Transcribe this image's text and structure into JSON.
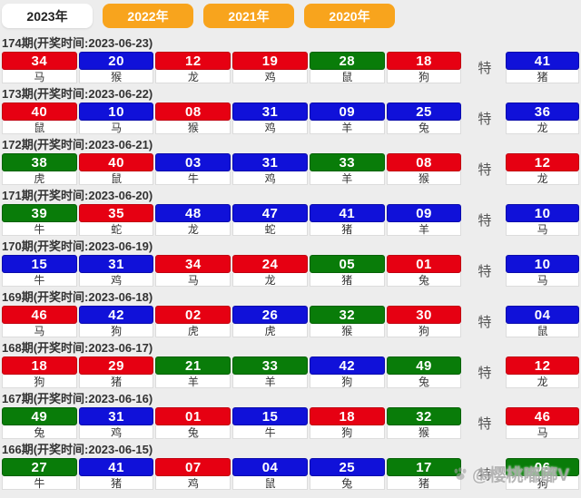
{
  "tabs": [
    {
      "label": "2023年",
      "active": true
    },
    {
      "label": "2022年",
      "active": false
    },
    {
      "label": "2021年",
      "active": false
    },
    {
      "label": "2020年",
      "active": false
    }
  ],
  "special_label": "特",
  "draws": [
    {
      "title": "174期(开奖时间:2023-06-23)",
      "numbers": [
        {
          "value": "34",
          "color": "red",
          "zodiac": "马"
        },
        {
          "value": "20",
          "color": "blue",
          "zodiac": "猴"
        },
        {
          "value": "12",
          "color": "red",
          "zodiac": "龙"
        },
        {
          "value": "19",
          "color": "red",
          "zodiac": "鸡"
        },
        {
          "value": "28",
          "color": "green",
          "zodiac": "鼠"
        },
        {
          "value": "18",
          "color": "red",
          "zodiac": "狗"
        }
      ],
      "special": {
        "value": "41",
        "color": "blue",
        "zodiac": "猪"
      }
    },
    {
      "title": "173期(开奖时间:2023-06-22)",
      "numbers": [
        {
          "value": "40",
          "color": "red",
          "zodiac": "鼠"
        },
        {
          "value": "10",
          "color": "blue",
          "zodiac": "马"
        },
        {
          "value": "08",
          "color": "red",
          "zodiac": "猴"
        },
        {
          "value": "31",
          "color": "blue",
          "zodiac": "鸡"
        },
        {
          "value": "09",
          "color": "blue",
          "zodiac": "羊"
        },
        {
          "value": "25",
          "color": "blue",
          "zodiac": "兔"
        }
      ],
      "special": {
        "value": "36",
        "color": "blue",
        "zodiac": "龙"
      }
    },
    {
      "title": "172期(开奖时间:2023-06-21)",
      "numbers": [
        {
          "value": "38",
          "color": "green",
          "zodiac": "虎"
        },
        {
          "value": "40",
          "color": "red",
          "zodiac": "鼠"
        },
        {
          "value": "03",
          "color": "blue",
          "zodiac": "牛"
        },
        {
          "value": "31",
          "color": "blue",
          "zodiac": "鸡"
        },
        {
          "value": "33",
          "color": "green",
          "zodiac": "羊"
        },
        {
          "value": "08",
          "color": "red",
          "zodiac": "猴"
        }
      ],
      "special": {
        "value": "12",
        "color": "red",
        "zodiac": "龙"
      }
    },
    {
      "title": "171期(开奖时间:2023-06-20)",
      "numbers": [
        {
          "value": "39",
          "color": "green",
          "zodiac": "牛"
        },
        {
          "value": "35",
          "color": "red",
          "zodiac": "蛇"
        },
        {
          "value": "48",
          "color": "blue",
          "zodiac": "龙"
        },
        {
          "value": "47",
          "color": "blue",
          "zodiac": "蛇"
        },
        {
          "value": "41",
          "color": "blue",
          "zodiac": "猪"
        },
        {
          "value": "09",
          "color": "blue",
          "zodiac": "羊"
        }
      ],
      "special": {
        "value": "10",
        "color": "blue",
        "zodiac": "马"
      }
    },
    {
      "title": "170期(开奖时间:2023-06-19)",
      "numbers": [
        {
          "value": "15",
          "color": "blue",
          "zodiac": "牛"
        },
        {
          "value": "31",
          "color": "blue",
          "zodiac": "鸡"
        },
        {
          "value": "34",
          "color": "red",
          "zodiac": "马"
        },
        {
          "value": "24",
          "color": "red",
          "zodiac": "龙"
        },
        {
          "value": "05",
          "color": "green",
          "zodiac": "猪"
        },
        {
          "value": "01",
          "color": "red",
          "zodiac": "兔"
        }
      ],
      "special": {
        "value": "10",
        "color": "blue",
        "zodiac": "马"
      }
    },
    {
      "title": "169期(开奖时间:2023-06-18)",
      "numbers": [
        {
          "value": "46",
          "color": "red",
          "zodiac": "马"
        },
        {
          "value": "42",
          "color": "blue",
          "zodiac": "狗"
        },
        {
          "value": "02",
          "color": "red",
          "zodiac": "虎"
        },
        {
          "value": "26",
          "color": "blue",
          "zodiac": "虎"
        },
        {
          "value": "32",
          "color": "green",
          "zodiac": "猴"
        },
        {
          "value": "30",
          "color": "red",
          "zodiac": "狗"
        }
      ],
      "special": {
        "value": "04",
        "color": "blue",
        "zodiac": "鼠"
      }
    },
    {
      "title": "168期(开奖时间:2023-06-17)",
      "numbers": [
        {
          "value": "18",
          "color": "red",
          "zodiac": "狗"
        },
        {
          "value": "29",
          "color": "red",
          "zodiac": "猪"
        },
        {
          "value": "21",
          "color": "green",
          "zodiac": "羊"
        },
        {
          "value": "33",
          "color": "green",
          "zodiac": "羊"
        },
        {
          "value": "42",
          "color": "blue",
          "zodiac": "狗"
        },
        {
          "value": "49",
          "color": "green",
          "zodiac": "兔"
        }
      ],
      "special": {
        "value": "12",
        "color": "red",
        "zodiac": "龙"
      }
    },
    {
      "title": "167期(开奖时间:2023-06-16)",
      "numbers": [
        {
          "value": "49",
          "color": "green",
          "zodiac": "兔"
        },
        {
          "value": "31",
          "color": "blue",
          "zodiac": "鸡"
        },
        {
          "value": "01",
          "color": "red",
          "zodiac": "兔"
        },
        {
          "value": "15",
          "color": "blue",
          "zodiac": "牛"
        },
        {
          "value": "18",
          "color": "red",
          "zodiac": "狗"
        },
        {
          "value": "32",
          "color": "green",
          "zodiac": "猴"
        }
      ],
      "special": {
        "value": "46",
        "color": "red",
        "zodiac": "马"
      }
    },
    {
      "title": "166期(开奖时间:2023-06-15)",
      "numbers": [
        {
          "value": "27",
          "color": "green",
          "zodiac": "牛"
        },
        {
          "value": "41",
          "color": "blue",
          "zodiac": "猪"
        },
        {
          "value": "07",
          "color": "red",
          "zodiac": "鸡"
        },
        {
          "value": "04",
          "color": "blue",
          "zodiac": "鼠"
        },
        {
          "value": "25",
          "color": "blue",
          "zodiac": "兔"
        },
        {
          "value": "17",
          "color": "green",
          "zodiac": "猪"
        }
      ],
      "special": {
        "value": "06",
        "color": "green",
        "zodiac": "狗"
      }
    }
  ],
  "watermark": {
    "text": "@樱桃嘟嘟V",
    "icon": "paw-icon"
  },
  "colors": {
    "page_bg": "#ededed",
    "tab_orange": "#f8a41d",
    "tab_active_bg": "#ffffff",
    "tab_active_text": "#222222",
    "ball": {
      "red": {
        "bg": "#e60012",
        "border": "#c00010"
      },
      "blue": {
        "bg": "#1011d9",
        "border": "#0b0cab"
      },
      "green": {
        "bg": "#097c09",
        "border": "#066106"
      }
    }
  }
}
